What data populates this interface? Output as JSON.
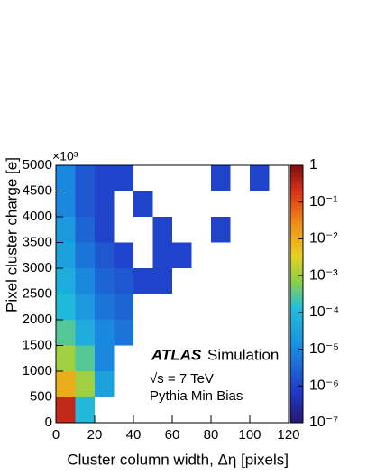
{
  "chart_data": {
    "type": "heatmap2d",
    "x_label": "Cluster column width, Δη [pixels]",
    "y_label": "Pixel cluster charge [e]",
    "y_multiplier": "×10³",
    "annotations": [
      "ATLAS",
      "Simulation",
      "√s = 7 TeV",
      "Pythia Min Bias"
    ],
    "xbins": [
      0,
      10,
      20,
      30,
      40,
      50,
      60,
      70,
      80,
      90,
      100,
      110,
      120
    ],
    "ybins": [
      0,
      500,
      1000,
      1500,
      2000,
      2500,
      3000,
      3500,
      4000,
      4500,
      5000
    ],
    "values": [
      [
        0.3,
        0.0001,
        null,
        null,
        null,
        null,
        null,
        null,
        null,
        null,
        null,
        null
      ],
      [
        0.01,
        0.001,
        3e-05,
        null,
        null,
        null,
        null,
        null,
        null,
        null,
        null,
        null
      ],
      [
        0.001,
        0.0003,
        1e-05,
        null,
        null,
        null,
        null,
        null,
        null,
        null,
        null,
        null
      ],
      [
        0.0003,
        5e-05,
        1e-05,
        5e-06,
        null,
        null,
        null,
        null,
        null,
        null,
        null,
        null
      ],
      [
        0.0001,
        2e-05,
        5e-06,
        3e-06,
        null,
        null,
        null,
        null,
        null,
        null,
        null,
        null
      ],
      [
        5e-05,
        1e-05,
        3e-06,
        2e-06,
        1e-06,
        1e-06,
        null,
        null,
        null,
        null,
        null,
        null
      ],
      [
        3e-05,
        5e-06,
        2e-06,
        1e-06,
        null,
        1e-06,
        1e-06,
        null,
        null,
        null,
        null,
        null
      ],
      [
        2e-05,
        3e-06,
        1e-06,
        null,
        null,
        1e-06,
        null,
        null,
        1e-06,
        null,
        null,
        null
      ],
      [
        1e-05,
        2e-06,
        1e-06,
        null,
        1e-06,
        null,
        null,
        null,
        null,
        null,
        null,
        null
      ],
      [
        1e-05,
        2e-06,
        1e-06,
        1e-06,
        null,
        null,
        null,
        null,
        1e-06,
        null,
        1e-06,
        null
      ]
    ],
    "xlim": [
      0,
      120
    ],
    "xticks": [
      0,
      20,
      40,
      60,
      80,
      100,
      120
    ],
    "ylim": [
      0,
      5000
    ],
    "yticks": [
      0,
      500,
      1000,
      1500,
      2000,
      2500,
      3000,
      3500,
      4000,
      4500,
      5000
    ],
    "zlim": [
      1e-07,
      1
    ],
    "zlog": true,
    "zticks": [
      {
        "value": 1e-07,
        "label": "10⁻⁷"
      },
      {
        "value": 1e-06,
        "label": "10⁻⁶"
      },
      {
        "value": 1e-05,
        "label": "10⁻⁵"
      },
      {
        "value": 0.0001,
        "label": "10⁻⁴"
      },
      {
        "value": 0.001,
        "label": "10⁻³"
      },
      {
        "value": 0.01,
        "label": "10⁻²"
      },
      {
        "value": 0.1,
        "label": "10⁻¹"
      },
      1
    ],
    "colorscale": [
      [
        0,
        "#25186e"
      ],
      [
        0.12,
        "#2038c8"
      ],
      [
        0.3,
        "#1a8fe0"
      ],
      [
        0.45,
        "#22c0d8"
      ],
      [
        0.55,
        "#8cd04a"
      ],
      [
        0.65,
        "#e8d020"
      ],
      [
        0.78,
        "#f08a18"
      ],
      [
        0.9,
        "#d8301a"
      ],
      [
        1,
        "#801010"
      ]
    ]
  }
}
